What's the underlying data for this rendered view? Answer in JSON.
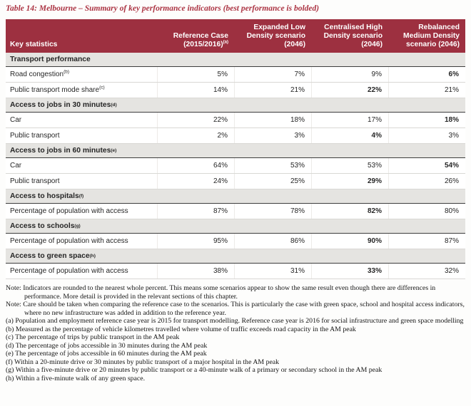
{
  "title": "Table 14: Melbourne – Summary of key performance indicators (best performance is bolded)",
  "colors": {
    "header_bg": "#9d3040",
    "title_text": "#ab3342",
    "section_bg": "#e5e4e1"
  },
  "table": {
    "key_statistics_label": "Key statistics",
    "scenario_columns": [
      {
        "lines": [
          "Reference Case",
          "(2015/2016)"
        ],
        "sup": "(a)"
      },
      {
        "lines": [
          "Expanded Low",
          "Density scenario",
          "(2046)"
        ],
        "sup": ""
      },
      {
        "lines": [
          "Centralised High",
          "Density scenario",
          "(2046)"
        ],
        "sup": ""
      },
      {
        "lines": [
          "Rebalanced",
          "Medium Density",
          "scenario (2046)"
        ],
        "sup": ""
      }
    ],
    "sections": [
      {
        "label": "Transport performance",
        "sup": "",
        "rows": [
          {
            "label": "Road congestion",
            "sup": "(b)",
            "values": [
              "5%",
              "7%",
              "9%",
              "6%"
            ],
            "bold_index": 3
          },
          {
            "label": "Public transport mode share",
            "sup": "(c)",
            "values": [
              "14%",
              "21%",
              "22%",
              "21%"
            ],
            "bold_index": 2
          }
        ]
      },
      {
        "label": "Access to jobs in 30 minutes",
        "sup": "(d)",
        "rows": [
          {
            "label": "Car",
            "sup": "",
            "values": [
              "22%",
              "18%",
              "17%",
              "18%"
            ],
            "bold_index": 3
          },
          {
            "label": "Public transport",
            "sup": "",
            "values": [
              "2%",
              "3%",
              "4%",
              "3%"
            ],
            "bold_index": 2
          }
        ]
      },
      {
        "label": "Access to jobs in 60 minutes",
        "sup": "(e)",
        "rows": [
          {
            "label": "Car",
            "sup": "",
            "values": [
              "64%",
              "53%",
              "53%",
              "54%"
            ],
            "bold_index": 3
          },
          {
            "label": "Public transport",
            "sup": "",
            "values": [
              "24%",
              "25%",
              "29%",
              "26%"
            ],
            "bold_index": 2
          }
        ]
      },
      {
        "label": "Access to hospitals",
        "sup": "(f)",
        "rows": [
          {
            "label": "Percentage of population with access",
            "sup": "",
            "values": [
              "87%",
              "78%",
              "82%",
              "80%"
            ],
            "bold_index": 2
          }
        ]
      },
      {
        "label": "Access to schools",
        "sup": "(g)",
        "rows": [
          {
            "label": "Percentage of population with access",
            "sup": "",
            "values": [
              "95%",
              "86%",
              "90%",
              "87%"
            ],
            "bold_index": 2
          }
        ]
      },
      {
        "label": "Access to green space",
        "sup": "(h)",
        "rows": [
          {
            "label": "Percentage of population with access",
            "sup": "",
            "values": [
              "38%",
              "31%",
              "33%",
              "32%"
            ],
            "bold_index": 2
          }
        ]
      }
    ]
  },
  "notes": [
    {
      "prefix": "Note:",
      "text": "Indicators are rounded to the nearest whole percent. This means some scenarios appear to show the same result even though there are differences in performance. More detail is provided in the relevant sections of this chapter."
    },
    {
      "prefix": "Note:",
      "text": "Care should be taken when comparing the reference case to the scenarios. This is particularly the case with green space, school and hospital access indicators, where no new infrastructure was added in addition to the reference year."
    }
  ],
  "footnotes": [
    {
      "marker": "(a)",
      "text": "Population and employment reference case year is 2015 for transport modelling. Reference case year is 2016 for social infrastructure and green space modelling"
    },
    {
      "marker": "(b)",
      "text": "Measured as the percentage of vehicle kilometres travelled where volume of traffic exceeds road capacity in the AM peak"
    },
    {
      "marker": "(c)",
      "text": "The percentage of trips by public transport in the AM peak"
    },
    {
      "marker": "(d)",
      "text": "The percentage of jobs accessible in 30 minutes during the AM peak"
    },
    {
      "marker": "(e)",
      "text": "The percentage of jobs accessible in 60 minutes during the AM peak"
    },
    {
      "marker": "(f)",
      "text": "Within a 20-minute drive or 30 minutes by public transport of a major hospital in the AM peak"
    },
    {
      "marker": "(g)",
      "text": "Within a five-minute drive or 20 minutes by public transport or a 40-minute walk of a primary or secondary school in the AM peak"
    },
    {
      "marker": "(h)",
      "text": "Within a five-minute walk of any green space."
    }
  ]
}
